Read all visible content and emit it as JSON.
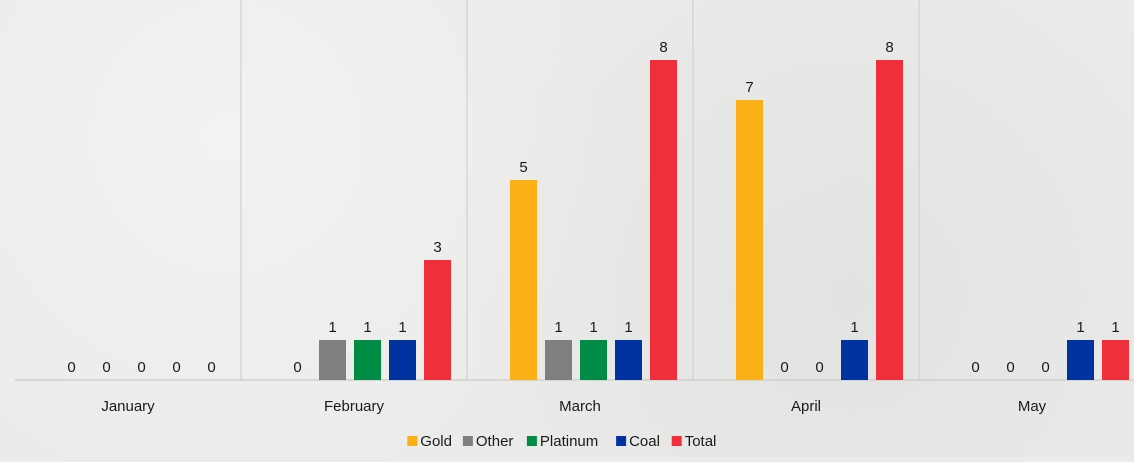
{
  "chart_data": {
    "type": "bar",
    "categories": [
      "January",
      "February",
      "March",
      "April",
      "May"
    ],
    "series": [
      {
        "name": "Gold",
        "color": "#fbb116",
        "values": [
          0,
          0,
          5,
          7,
          0
        ]
      },
      {
        "name": "Other",
        "color": "#7f7f7f",
        "values": [
          0,
          1,
          1,
          0,
          0
        ]
      },
      {
        "name": "Platinum",
        "color": "#008c45",
        "values": [
          0,
          1,
          1,
          0,
          0
        ]
      },
      {
        "name": "Coal",
        "color": "#0033a0",
        "values": [
          0,
          1,
          1,
          1,
          1
        ]
      },
      {
        "name": "Total",
        "color": "#ef2f3c",
        "values": [
          0,
          3,
          8,
          8,
          1
        ]
      }
    ],
    "title": "",
    "xlabel": "",
    "ylabel": "",
    "ylim": [
      0,
      8
    ],
    "grid": false,
    "legend": "bottom-center"
  }
}
